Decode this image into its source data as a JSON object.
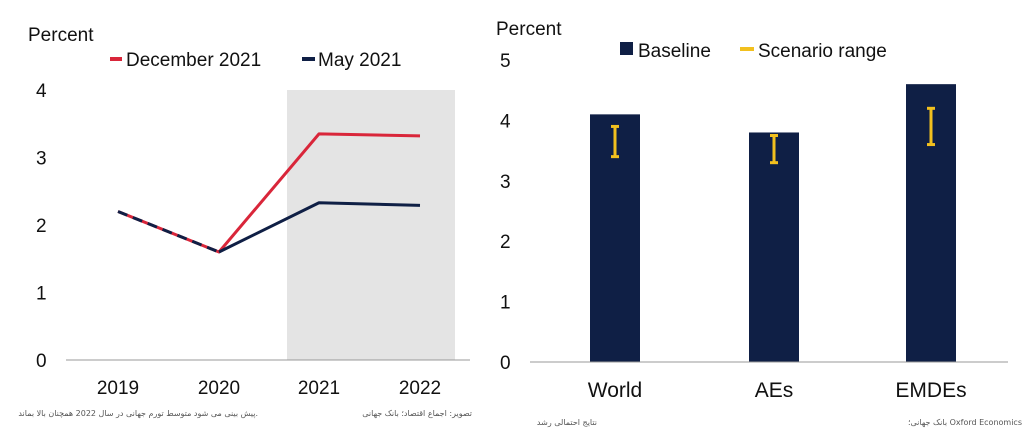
{
  "chart_data": [
    {
      "type": "line",
      "ylabel": "Percent",
      "categories": [
        "2019",
        "2020",
        "2021",
        "2022"
      ],
      "ylim": [
        0,
        4
      ],
      "yticks": [
        "0",
        "1",
        "2",
        "3",
        "4"
      ],
      "shaded_categories": [
        "2021",
        "2022"
      ],
      "grid": false,
      "legend_position": "top",
      "series": [
        {
          "name": "December 2021",
          "color": "#d9263a",
          "values": [
            2.2,
            1.6,
            3.35,
            3.32
          ]
        },
        {
          "name": "May 2021",
          "color": "#0f1f45",
          "values": [
            2.2,
            1.6,
            2.33,
            2.29
          ]
        }
      ],
      "caption_left": "پیش بینی می شود متوسط تورم جهانی در سال 2022 همچنان بالا بماند.",
      "caption_right": "تصویر: اجماع اقتصاد؛ بانک جهانی"
    },
    {
      "type": "bar",
      "ylabel": "Percent",
      "categories": [
        "World",
        "AEs",
        "EMDEs"
      ],
      "ylim": [
        0,
        5
      ],
      "yticks": [
        "0",
        "1",
        "2",
        "3",
        "4",
        "5"
      ],
      "grid": false,
      "legend_position": "top",
      "series": [
        {
          "name": "Baseline",
          "color": "#0f1f45",
          "values": [
            4.1,
            3.8,
            4.6
          ]
        },
        {
          "name": "Scenario range",
          "color": "#f2c01e",
          "low": [
            3.4,
            3.3,
            3.6
          ],
          "high": [
            3.9,
            3.75,
            4.2
          ]
        }
      ],
      "caption_left": "نتایج احتمالی رشد",
      "caption_right": "بانک جهانی؛ Oxford Economics"
    }
  ]
}
